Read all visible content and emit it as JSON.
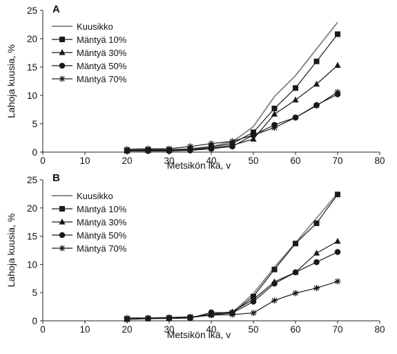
{
  "chart_data": [
    {
      "type": "line",
      "panel_label": "A",
      "xlabel": "Metsikön ikä, v",
      "ylabel": "Lahoja kuusia, %",
      "xlim": [
        0,
        80
      ],
      "ylim": [
        0,
        25
      ],
      "x_ticks": [
        0,
        10,
        20,
        30,
        40,
        50,
        60,
        70,
        80
      ],
      "y_ticks": [
        0,
        5,
        10,
        15,
        20,
        25
      ],
      "grid": false,
      "legend_position": "top-left",
      "series": [
        {
          "name": "Kuusikko",
          "marker": "none",
          "color": "#8c8c8c",
          "x": [
            20,
            25,
            30,
            35,
            40,
            45,
            50,
            55,
            60,
            65,
            70
          ],
          "y": [
            0.3,
            0.4,
            0.4,
            0.6,
            1.0,
            1.8,
            4.5,
            9.8,
            13.5,
            18.2,
            22.9
          ]
        },
        {
          "name": "Mäntyä 10%",
          "marker": "square",
          "color": "#1a1a1a",
          "x": [
            20,
            25,
            30,
            35,
            40,
            45,
            50,
            55,
            60,
            65,
            70
          ],
          "y": [
            0.3,
            0.4,
            0.4,
            0.5,
            0.9,
            1.5,
            3.5,
            7.7,
            11.3,
            16.0,
            20.8
          ]
        },
        {
          "name": "Mäntyä 30%",
          "marker": "triangle",
          "color": "#1a1a1a",
          "x": [
            20,
            25,
            30,
            35,
            40,
            45,
            50,
            55,
            60,
            65,
            70
          ],
          "y": [
            0.2,
            0.3,
            0.3,
            0.4,
            0.7,
            1.2,
            2.3,
            6.7,
            9.2,
            12.0,
            15.3
          ]
        },
        {
          "name": "Mäntyä 50%",
          "marker": "circle",
          "color": "#1a1a1a",
          "x": [
            20,
            25,
            30,
            35,
            40,
            45,
            50,
            55,
            60,
            65,
            70
          ],
          "y": [
            0.2,
            0.2,
            0.2,
            0.3,
            0.6,
            1.0,
            3.0,
            4.8,
            6.1,
            8.3,
            10.2
          ]
        },
        {
          "name": "Mäntyä 70%",
          "marker": "star",
          "color": "#1a1a1a",
          "x": [
            20,
            25,
            30,
            35,
            40,
            45,
            50,
            55,
            60,
            65,
            70
          ],
          "y": [
            0.5,
            0.6,
            0.6,
            1.0,
            1.5,
            1.9,
            3.0,
            4.3,
            6.1,
            8.2,
            10.6
          ]
        }
      ]
    },
    {
      "type": "line",
      "panel_label": "B",
      "xlabel": "Metsikön ikä, v",
      "ylabel": "Lahoja kuusia, %",
      "xlim": [
        0,
        80
      ],
      "ylim": [
        0,
        25
      ],
      "x_ticks": [
        0,
        10,
        20,
        30,
        40,
        50,
        60,
        70,
        80
      ],
      "y_ticks": [
        0,
        5,
        10,
        15,
        20,
        25
      ],
      "grid": false,
      "legend_position": "top-left",
      "series": [
        {
          "name": "Kuusikko",
          "marker": "none",
          "color": "#8c8c8c",
          "x": [
            20,
            25,
            30,
            35,
            40,
            45,
            50,
            55,
            60,
            65,
            70
          ],
          "y": [
            0.3,
            0.4,
            0.5,
            0.6,
            1.0,
            1.5,
            4.8,
            9.5,
            13.8,
            18.2,
            22.6
          ]
        },
        {
          "name": "Mäntyä 10%",
          "marker": "square",
          "color": "#1a1a1a",
          "x": [
            20,
            25,
            30,
            35,
            40,
            45,
            50,
            55,
            60,
            65,
            70
          ],
          "y": [
            0.3,
            0.4,
            0.5,
            0.6,
            1.1,
            1.4,
            4.3,
            9.1,
            13.7,
            17.3,
            22.4
          ]
        },
        {
          "name": "Mäntyä 30%",
          "marker": "triangle",
          "color": "#1a1a1a",
          "x": [
            20,
            25,
            30,
            35,
            40,
            45,
            50,
            55,
            60,
            65,
            70
          ],
          "y": [
            0.3,
            0.4,
            0.5,
            0.6,
            1.2,
            1.6,
            3.8,
            6.9,
            8.6,
            12.0,
            14.1
          ]
        },
        {
          "name": "Mäntyä 50%",
          "marker": "circle",
          "color": "#1a1a1a",
          "x": [
            20,
            25,
            30,
            35,
            40,
            45,
            50,
            55,
            60,
            65,
            70
          ],
          "y": [
            0.3,
            0.4,
            0.4,
            0.5,
            1.5,
            1.4,
            3.4,
            6.6,
            8.6,
            10.4,
            12.2
          ]
        },
        {
          "name": "Mäntyä 70%",
          "marker": "star",
          "color": "#1a1a1a",
          "x": [
            20,
            25,
            30,
            35,
            40,
            45,
            50,
            55,
            60,
            65,
            70
          ],
          "y": [
            0.5,
            0.5,
            0.6,
            0.7,
            1.0,
            1.1,
            1.4,
            3.6,
            4.9,
            5.8,
            7.0
          ]
        }
      ]
    }
  ]
}
